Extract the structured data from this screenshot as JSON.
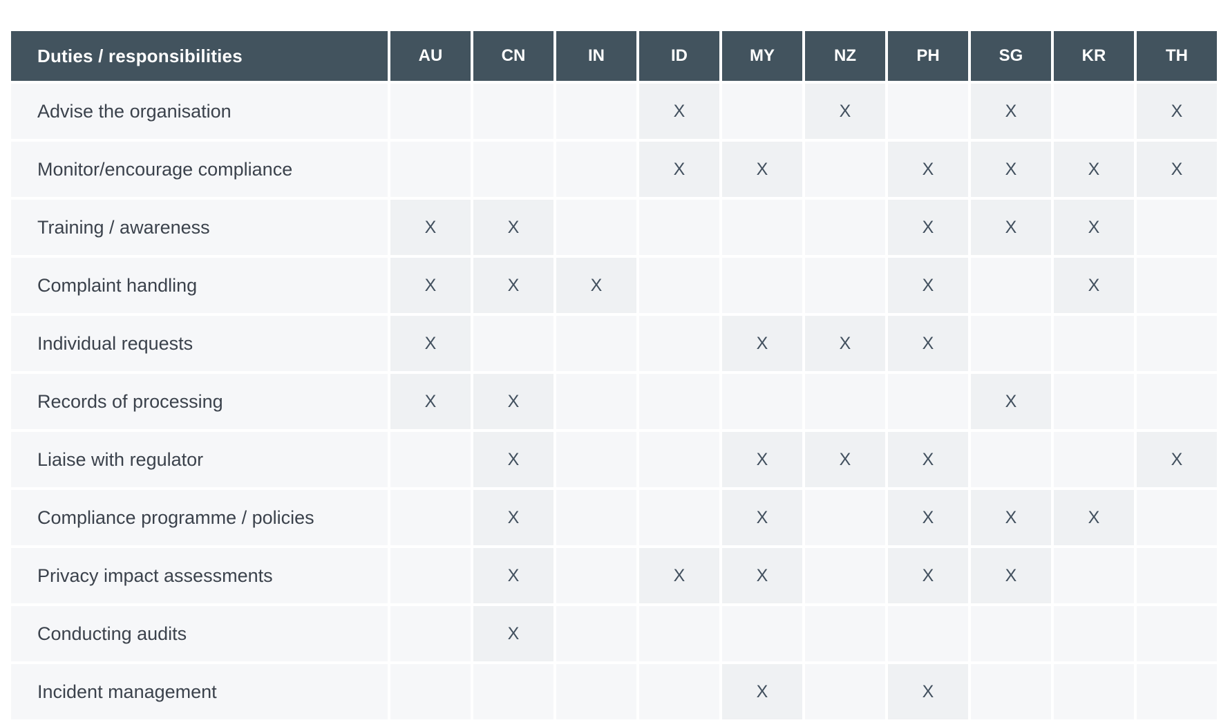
{
  "table": {
    "header": {
      "label": "Duties / responsibilities",
      "countries": [
        "AU",
        "CN",
        "IN",
        "ID",
        "MY",
        "NZ",
        "PH",
        "SG",
        "KR",
        "TH"
      ]
    },
    "mark": "X",
    "rows": [
      {
        "label": "Advise the organisation",
        "marks": [
          "ID",
          "NZ",
          "SG",
          "TH"
        ]
      },
      {
        "label": "Monitor/encourage compliance",
        "marks": [
          "ID",
          "MY",
          "PH",
          "SG",
          "KR",
          "TH"
        ]
      },
      {
        "label": "Training / awareness",
        "marks": [
          "AU",
          "CN",
          "PH",
          "SG",
          "KR"
        ]
      },
      {
        "label": "Complaint handling",
        "marks": [
          "AU",
          "CN",
          "IN",
          "PH",
          "KR"
        ]
      },
      {
        "label": "Individual requests",
        "marks": [
          "AU",
          "MY",
          "NZ",
          "PH"
        ]
      },
      {
        "label": "Records of processing",
        "marks": [
          "AU",
          "CN",
          "SG"
        ]
      },
      {
        "label": "Liaise with regulator",
        "marks": [
          "CN",
          "MY",
          "NZ",
          "PH",
          "TH"
        ]
      },
      {
        "label": "Compliance programme / policies",
        "marks": [
          "CN",
          "MY",
          "PH",
          "SG",
          "KR"
        ]
      },
      {
        "label": "Privacy impact assessments",
        "marks": [
          "CN",
          "ID",
          "MY",
          "PH",
          "SG"
        ]
      },
      {
        "label": "Conducting audits",
        "marks": [
          "CN"
        ]
      },
      {
        "label": "Incident management",
        "marks": [
          "MY",
          "PH"
        ]
      }
    ],
    "colors": {
      "header_bg": "#42535e",
      "header_text": "#ffffff",
      "row_bg": "#f6f7f9",
      "marked_cell_bg": "#eff1f3",
      "mark_text": "#42505e",
      "label_text": "#3b424c",
      "page_bg": "#ffffff"
    }
  }
}
